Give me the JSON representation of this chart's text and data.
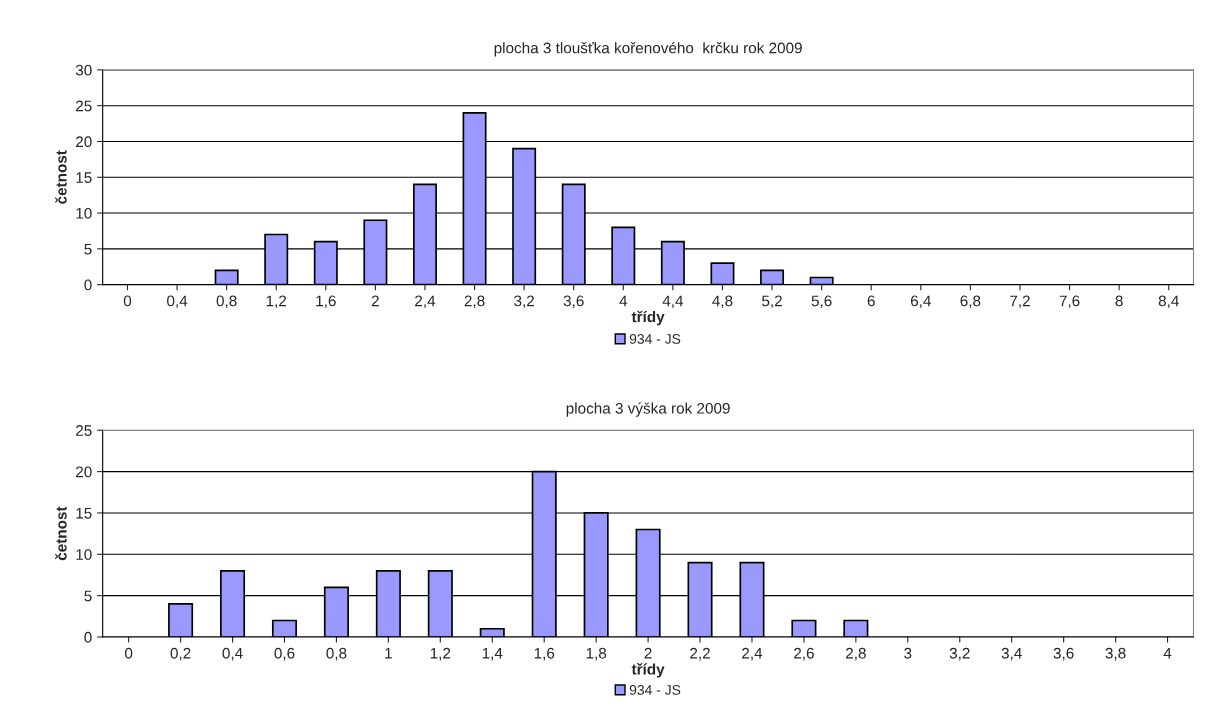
{
  "chart_data": [
    {
      "type": "bar",
      "title": "plocha 3 tloušťka kořenového  krčku rok 2009",
      "xlabel": "třídy",
      "ylabel": "četnost",
      "categories": [
        "0",
        "0,4",
        "0,8",
        "1,2",
        "1,6",
        "2",
        "2,4",
        "2,8",
        "3,2",
        "3,6",
        "4",
        "4,4",
        "4,8",
        "5,2",
        "5,6",
        "6",
        "6,4",
        "6,8",
        "7,2",
        "7,6",
        "8",
        "8,4"
      ],
      "series": [
        {
          "name": "934 - JS",
          "color": "#9999ff",
          "values": [
            0,
            0,
            2,
            7,
            6,
            9,
            14,
            24,
            19,
            14,
            8,
            6,
            3,
            2,
            1,
            0,
            0,
            0,
            0,
            0,
            0,
            0
          ]
        }
      ],
      "ylim": [
        0,
        30
      ],
      "yticks": [
        0,
        5,
        10,
        15,
        20,
        25,
        30
      ],
      "grid": "y",
      "legend": "bottom"
    },
    {
      "type": "bar",
      "title": "plocha 3 výška rok 2009",
      "xlabel": "třídy",
      "ylabel": "četnost",
      "categories": [
        "0",
        "0,2",
        "0,4",
        "0,6",
        "0,8",
        "1",
        "1,2",
        "1,4",
        "1,6",
        "1,8",
        "2",
        "2,2",
        "2,4",
        "2,6",
        "2,8",
        "3",
        "3,2",
        "3,4",
        "3,6",
        "3,8",
        "4"
      ],
      "series": [
        {
          "name": "934 - JS",
          "color": "#9999ff",
          "values": [
            0,
            4,
            8,
            2,
            6,
            8,
            8,
            1,
            20,
            15,
            13,
            9,
            9,
            2,
            2,
            0,
            0,
            0,
            0,
            0,
            0
          ]
        }
      ],
      "ylim": [
        0,
        25
      ],
      "yticks": [
        0,
        5,
        10,
        15,
        20,
        25
      ],
      "grid": "y",
      "legend": "bottom"
    }
  ]
}
